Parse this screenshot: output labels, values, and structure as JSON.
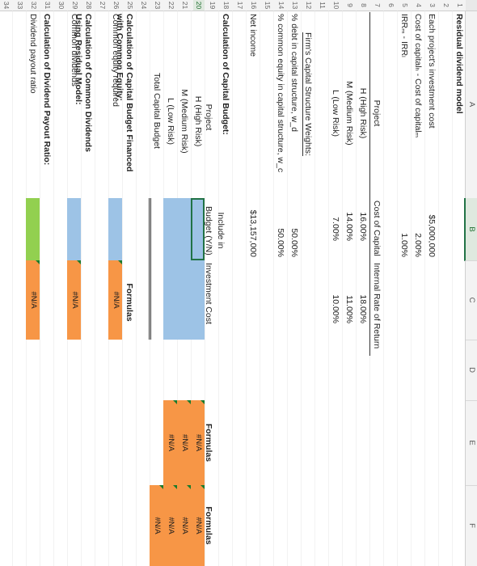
{
  "columns": [
    "A",
    "B",
    "C",
    "D",
    "E",
    "F"
  ],
  "rows": [
    "1",
    "2",
    "3",
    "4",
    "5",
    "6",
    "7",
    "8",
    "9",
    "10",
    "11",
    "12",
    "13",
    "14",
    "15",
    "16",
    "17",
    "18",
    "19",
    "20",
    "21",
    "22",
    "23",
    "24",
    "25",
    "26",
    "27",
    "28",
    "29",
    "30",
    "31",
    "32",
    "33",
    "34"
  ],
  "title": "Residual dividend model",
  "inputs": {
    "investment_label": "Each project's investment cost",
    "investment_value": "$5,000,000",
    "cost_diff_label": "Cost of capitalₕ - Cost of capitalₘ",
    "cost_diff_value": "2.00%",
    "irr_diff_label": "IRRₘ - IRRₗ",
    "irr_diff_value": "1.00%"
  },
  "projects_table": {
    "headers": [
      "Project",
      "Cost of Capital",
      "Internal Rate of Return"
    ],
    "rows": [
      {
        "name": "H (High Risk)",
        "cost": "16.00%",
        "irr": "18.00%"
      },
      {
        "name": "M (Medium Risk)",
        "cost": "14.00%",
        "irr": "11.00%"
      },
      {
        "name": "L (Low Risk)",
        "cost": "7.00%",
        "irr": "10.00%"
      }
    ]
  },
  "structure": {
    "heading": "Firm's Capital Structure Weights:",
    "debt_label": "% debt in capital structure, w_d",
    "debt_value": "50.00%",
    "equity_label": "% common equity in capital structure, w_c",
    "equity_value": "50.00%"
  },
  "net_income": {
    "label": "Net income",
    "value": "$13,157,000"
  },
  "budget": {
    "heading": "Calculation of Capital Budget:",
    "col_project": "Project",
    "col_include": "Include in Budget (Y/N)",
    "col_include_1": "Include in",
    "col_include_2": "Budget (Y/N)",
    "col_cost": "Investment Cost",
    "rows": [
      "H (High Risk)",
      "M (Medium Risk)",
      "L (Low Risk)"
    ],
    "total_label": "Total Capital Budget",
    "formulas_label": "Formulas",
    "e_values": [
      "#N/A",
      "#N/A",
      "#N/A"
    ],
    "f_values": [
      "#N/A",
      "#N/A",
      "#N/A",
      "#N/A"
    ]
  },
  "equity_section": {
    "heading_1": "Calculation of Capital Budget Financed",
    "heading_2": "with Common Equity:",
    "label": "Common equity required",
    "formulas_label": "Formulas",
    "value": "#N/A"
  },
  "dividends_section": {
    "heading_1": "Calculation of Common Dividends",
    "heading_2": "Using Residual Model:",
    "label": "Common dividends",
    "value": "#N/A"
  },
  "payout_section": {
    "heading": "Calculation of Dividend Payout Ratio:",
    "label": "Dividend payout ratio",
    "value": "#N/A"
  },
  "colors": {
    "input_blue": "#9dc3e6",
    "formula_orange": "#f79646",
    "green_input": "#92d050",
    "header_green": "#217346"
  }
}
